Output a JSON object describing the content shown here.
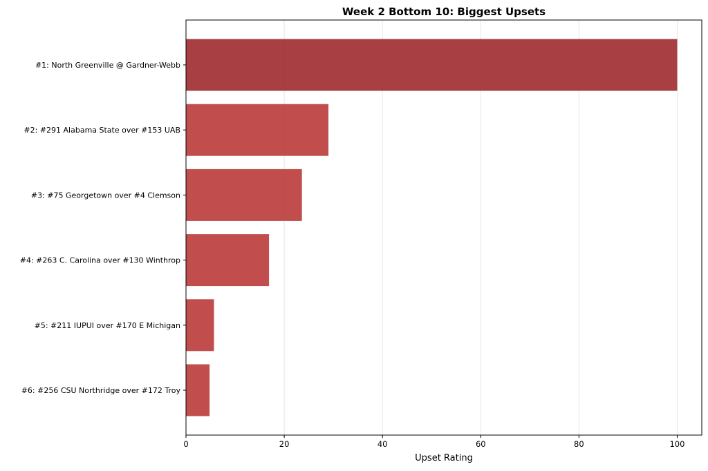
{
  "chart_data": {
    "type": "bar",
    "orientation": "horizontal",
    "title": "Week 2 Bottom 10: Biggest Upsets",
    "xlabel": "Upset Rating",
    "ylabel": "",
    "xlim": [
      0,
      105
    ],
    "xticks": [
      0,
      20,
      40,
      60,
      80,
      100
    ],
    "grid": "x",
    "categories": [
      "#1: North Greenville @ Gardner-Webb",
      "#2: #291 Alabama State over #153 UAB",
      "#3: #75 Georgetown over #4 Clemson",
      "#4: #263 C. Carolina over #130 Winthrop",
      "#5: #211 IUPUI over #170 E Michigan",
      "#6: #256 CSU Northridge over #172 Troy"
    ],
    "values": [
      100,
      29.0,
      23.6,
      16.9,
      5.7,
      4.8
    ],
    "colors": [
      "#9b2226",
      "#b83232",
      "#b83232",
      "#b83232",
      "#b83232",
      "#b83232"
    ]
  }
}
